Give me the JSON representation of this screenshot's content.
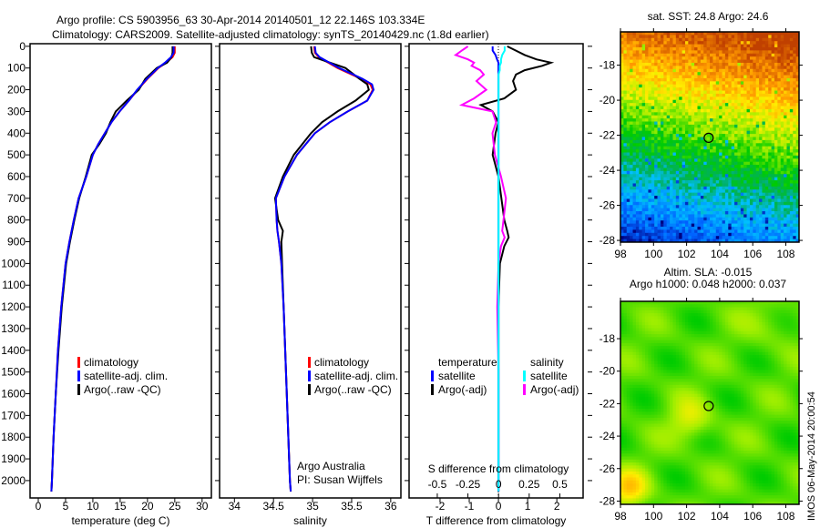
{
  "header": {
    "title_line1": "Argo profile: CS 5903956_63 30-Apr-2014 20140501_12 22.146S 103.334E",
    "title_line2": "Climatology: CARS2009. Satellite-adjusted climatology: synTS_20140429.nc (1.8d earlier)"
  },
  "footer_stamp": "IMOS 06-May-2014 20:00:54",
  "colors": {
    "climatology": "#ff0000",
    "satellite": "#0000ff",
    "argo": "#000000",
    "sal_satellite": "#00ffff",
    "sal_argo": "#ff00ff"
  },
  "chart_data": [
    {
      "type": "line",
      "id": "temperature",
      "xlabel": "temperature (deg C)",
      "ylabel": "",
      "xlim": [
        -1.5,
        31.7
      ],
      "ylim": [
        2080,
        -12
      ],
      "xticks": [
        "0",
        "5",
        "10",
        "15",
        "20",
        "25",
        "30"
      ],
      "yticks": [
        "0",
        "100",
        "200",
        "300",
        "400",
        "500",
        "600",
        "700",
        "800",
        "900",
        "1000",
        "1100",
        "1200",
        "1300",
        "1400",
        "1500",
        "1600",
        "1700",
        "1800",
        "1900",
        "2000"
      ],
      "legend": [
        "climatology",
        "satellite-adj. clim.",
        "Argo(..raw -QC)"
      ],
      "depth": [
        0,
        30,
        50,
        75,
        100,
        150,
        200,
        250,
        300,
        350,
        400,
        450,
        500,
        600,
        700,
        800,
        900,
        1000,
        1200,
        1400,
        1600,
        1800,
        2000,
        2050
      ],
      "series": [
        {
          "name": "climatology",
          "values": [
            25.0,
            25.0,
            24.6,
            23.4,
            22.0,
            20.0,
            18.2,
            16.6,
            14.9,
            13.4,
            12.2,
            11.0,
            10.0,
            8.8,
            7.4,
            6.5,
            5.7,
            5.0,
            4.2,
            3.6,
            3.2,
            2.8,
            2.5,
            2.4
          ]
        },
        {
          "name": "satellite-adj. clim.",
          "values": [
            24.8,
            24.8,
            24.3,
            23.2,
            21.9,
            19.9,
            18.1,
            16.6,
            14.9,
            13.4,
            12.2,
            11.0,
            10.0,
            8.8,
            7.4,
            6.5,
            5.7,
            5.0,
            4.2,
            3.6,
            3.2,
            2.8,
            2.5,
            2.4
          ]
        },
        {
          "name": "Argo(..raw -QC)",
          "values": [
            24.6,
            24.6,
            24.4,
            23.6,
            21.7,
            19.6,
            18.4,
            16.2,
            14.2,
            13.2,
            12.4,
            11.2,
            9.8,
            8.7,
            7.5,
            6.6,
            5.8,
            5.1,
            4.3,
            3.7,
            3.2,
            2.8,
            2.5,
            2.4
          ]
        }
      ]
    },
    {
      "type": "line",
      "id": "salinity",
      "xlabel": "salinity",
      "xlim": [
        33.81,
        36.13
      ],
      "ylim": [
        2080,
        -12
      ],
      "xticks": [
        "34",
        "34.5",
        "35",
        "35.5",
        "36"
      ],
      "legend": [
        "climatology",
        "satellite-adj. clim.",
        "Argo(..raw -QC)"
      ],
      "annotation": [
        "Argo Australia",
        "PI: Susan Wijffels"
      ],
      "depth": [
        0,
        30,
        50,
        100,
        150,
        175,
        200,
        250,
        300,
        350,
        400,
        500,
        600,
        700,
        800,
        850,
        900,
        1000,
        1200,
        1500,
        2000,
        2050
      ],
      "series": [
        {
          "name": "climatology",
          "values": [
            35.02,
            35.03,
            35.08,
            35.32,
            35.62,
            35.74,
            35.77,
            35.7,
            35.45,
            35.22,
            35.03,
            34.8,
            34.64,
            34.53,
            34.54,
            34.55,
            34.57,
            34.6,
            34.63,
            34.66,
            34.71,
            34.72
          ]
        },
        {
          "name": "satellite-adj. clim.",
          "values": [
            35.03,
            35.04,
            35.09,
            35.34,
            35.64,
            35.76,
            35.78,
            35.7,
            35.45,
            35.22,
            35.03,
            34.8,
            34.64,
            34.53,
            34.54,
            34.55,
            34.57,
            34.6,
            34.63,
            34.66,
            34.71,
            34.72
          ]
        },
        {
          "name": "Argo(..raw -QC)",
          "values": [
            34.98,
            34.99,
            35.02,
            35.42,
            35.6,
            35.7,
            35.72,
            35.55,
            35.32,
            35.12,
            34.98,
            34.76,
            34.62,
            34.52,
            34.56,
            34.62,
            34.6,
            34.61,
            34.63,
            34.66,
            34.71,
            34.72
          ]
        }
      ]
    },
    {
      "type": "line",
      "id": "differences",
      "xlabel": "T difference from climatology",
      "x2label": "S difference from climatology",
      "xlim": [
        -3.06,
        2.9
      ],
      "x2lim": [
        -0.73,
        0.69
      ],
      "ylim": [
        2080,
        -12
      ],
      "xticks": [
        "-2",
        "-1",
        "0",
        "1",
        "2"
      ],
      "x2ticks": [
        "-0.5",
        "-0.25",
        "0",
        "0.25",
        "0.5"
      ],
      "legend_headers": [
        "temperature",
        "salinity"
      ],
      "legend": [
        "satellite",
        "Argo(-adj)",
        "satellite",
        "Argo(-adj)"
      ],
      "depth": [
        0,
        20,
        40,
        60,
        75,
        90,
        110,
        130,
        160,
        200,
        240,
        270,
        300,
        350,
        400,
        500,
        600,
        700,
        800,
        850,
        880,
        920,
        1000,
        1200,
        1500,
        2000,
        2050
      ],
      "series": [
        {
          "name": "T satellite",
          "axis": "T",
          "values": [
            -0.2,
            -0.2,
            -0.1,
            -0.05,
            0,
            0,
            0,
            0,
            0,
            0,
            0,
            0,
            0,
            0,
            0,
            0,
            0,
            0,
            0,
            0,
            0,
            0,
            0,
            0,
            0,
            0,
            0
          ]
        },
        {
          "name": "T Argo(-adj)",
          "axis": "T",
          "values": [
            0.3,
            0.6,
            0.9,
            1.3,
            1.8,
            1.5,
            0.9,
            0.6,
            0.5,
            0.6,
            0.2,
            -0.6,
            -0.2,
            0.0,
            -0.1,
            -0.2,
            0.0,
            0.1,
            0.2,
            0.3,
            0.35,
            0.2,
            0.05,
            0.0,
            0.0,
            0.0,
            0.0
          ]
        },
        {
          "name": "S satellite",
          "axis": "S",
          "values": [
            0.05,
            0.05,
            0.03,
            0.02,
            0.02,
            0.01,
            0.01,
            0.0,
            0.0,
            0.0,
            0.0,
            0.0,
            0.0,
            0.0,
            0.0,
            0.0,
            0.0,
            0.0,
            0.0,
            0.0,
            0.0,
            0.0,
            0.0,
            0.0,
            0.0,
            0.0,
            0.0
          ]
        },
        {
          "name": "S Argo(-adj)",
          "axis": "S",
          "values": [
            -0.25,
            -0.3,
            -0.35,
            -0.25,
            -0.2,
            -0.22,
            -0.15,
            -0.12,
            -0.18,
            -0.1,
            -0.2,
            -0.3,
            -0.05,
            -0.02,
            -0.05,
            -0.03,
            0.02,
            0.06,
            0.04,
            0.03,
            0.05,
            0.02,
            0.0,
            -0.01,
            0.0,
            0.0,
            0.0
          ]
        }
      ]
    },
    {
      "type": "heatmap",
      "id": "sst-map",
      "title": "sat. SST: 24.8 Argo: 24.6",
      "xlim": [
        98,
        108.8
      ],
      "ylim": [
        -28.1,
        -16.1
      ],
      "xticks": [
        "98",
        "100",
        "102",
        "104",
        "106",
        "108"
      ],
      "yticks": [
        "-18",
        "-20",
        "-22",
        "-24",
        "-26",
        "-28"
      ],
      "marker": {
        "lon": 103.334,
        "lat": -22.146
      }
    },
    {
      "type": "heatmap",
      "id": "sla-map",
      "title_line1": "Altim. SLA: -0.015",
      "title_line2": "Argo h1000: 0.048 h2000: 0.037",
      "xlim": [
        98,
        108.8
      ],
      "ylim": [
        -28.2,
        -15.7
      ],
      "xticks": [
        "98",
        "100",
        "102",
        "104",
        "106",
        "108"
      ],
      "yticks": [
        "-18",
        "-20",
        "-22",
        "-24",
        "-26",
        "-28"
      ],
      "marker": {
        "lon": 103.334,
        "lat": -22.146
      }
    }
  ]
}
